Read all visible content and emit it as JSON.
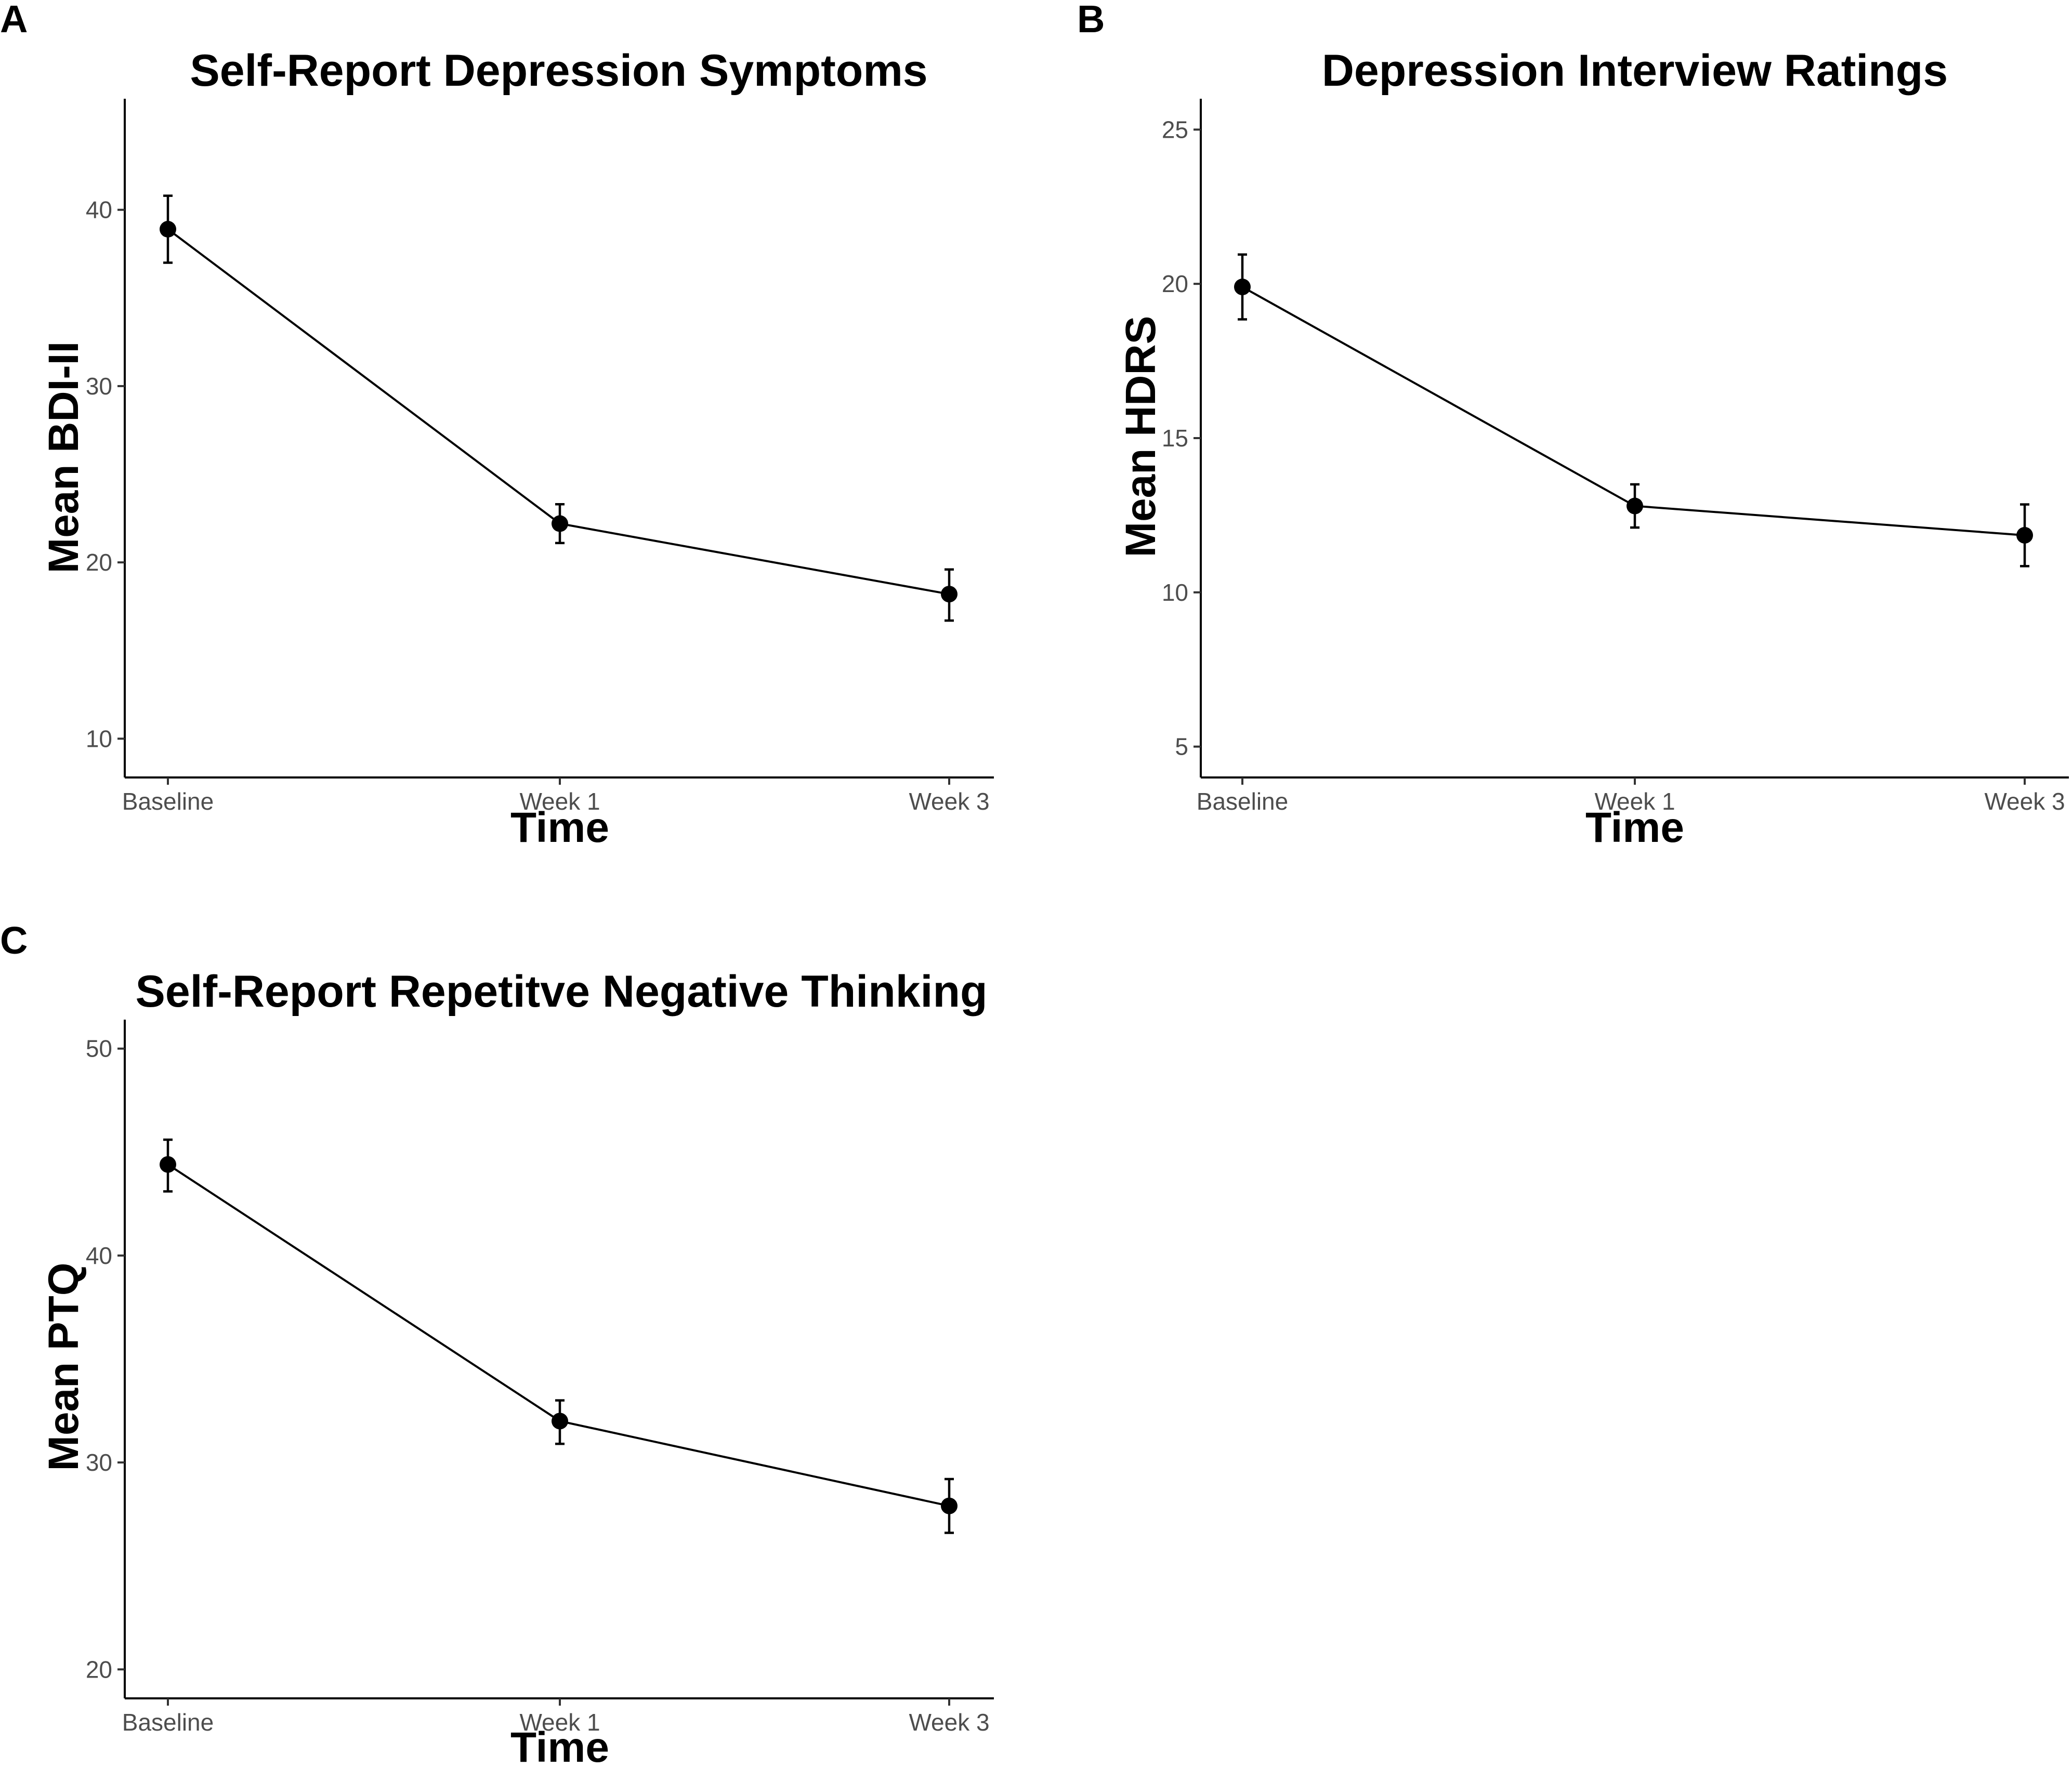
{
  "figure": {
    "panels": [
      {
        "letter": "A"
      },
      {
        "letter": "B"
      },
      {
        "letter": "C"
      }
    ]
  },
  "chart_data": [
    {
      "type": "line",
      "title": "Self-Report Depression Symptoms",
      "xlabel": "Time",
      "ylabel": "Mean BDI-II",
      "categories": [
        "Baseline",
        "Week 1",
        "Week 3"
      ],
      "values": [
        38.9,
        22.2,
        18.2
      ],
      "error_low": [
        37.0,
        21.1,
        16.7
      ],
      "error_high": [
        40.8,
        23.3,
        19.6
      ],
      "yticks": [
        10,
        20,
        30,
        40
      ],
      "ylim": [
        7.8,
        46.3
      ]
    },
    {
      "type": "line",
      "title": "Depression Interview Ratings",
      "xlabel": "Time",
      "ylabel": "Mean HDRS",
      "categories": [
        "Baseline",
        "Week 1",
        "Week 3"
      ],
      "values": [
        19.9,
        12.8,
        11.85
      ],
      "error_low": [
        18.85,
        12.1,
        10.85
      ],
      "error_high": [
        20.95,
        13.5,
        12.85
      ],
      "yticks": [
        5,
        10,
        15,
        20,
        25
      ],
      "ylim": [
        4.0,
        26.0
      ]
    },
    {
      "type": "line",
      "title": "Self-Report Repetitve Negative Thinking",
      "xlabel": "Time",
      "ylabel": "Mean PTQ",
      "categories": [
        "Baseline",
        "Week 1",
        "Week 3"
      ],
      "values": [
        44.4,
        32.0,
        27.9
      ],
      "error_low": [
        43.1,
        30.9,
        26.6
      ],
      "error_high": [
        45.6,
        33.0,
        29.2
      ],
      "yticks": [
        20,
        30,
        40,
        50
      ],
      "ylim": [
        18.6,
        51.4
      ]
    }
  ]
}
